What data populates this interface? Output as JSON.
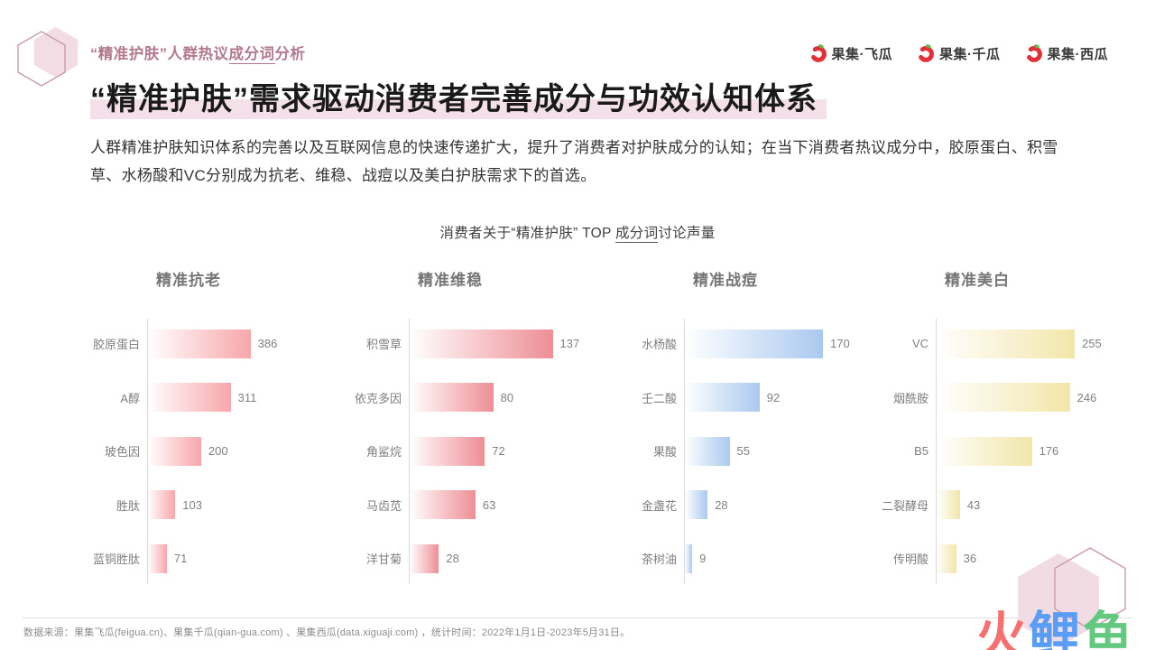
{
  "header": {
    "kicker": {
      "pre": "“精准护肤”人群热议",
      "underlined": "成分词",
      "post": "分析"
    },
    "brands": [
      {
        "name": "果集·飞瓜"
      },
      {
        "name": "果集·千瓜"
      },
      {
        "name": "果集·西瓜"
      }
    ]
  },
  "title": "“精准护肤”需求驱动消费者完善成分与功效认知体系",
  "intro": "人群精准护肤知识体系的完善以及互联网信息的快速传递扩大，提升了消费者对护肤成分的认知；在当下消费者热议成分中，胶原蛋白、积雪草、水杨酸和VC分别成为抗老、维稳、战痘以及美白护肤需求下的首选。",
  "chart_section": {
    "title_pre": "消费者关于“精准护肤” TOP ",
    "title_underlined": "成分词",
    "title_post": "讨论声量"
  },
  "chart_data": [
    {
      "type": "bar",
      "orientation": "horizontal",
      "title": "精准抗老",
      "categories": [
        "胶原蛋白",
        "A醇",
        "玻色因",
        "胜肽",
        "蓝铜胜肽"
      ],
      "values": [
        386,
        311,
        200,
        103,
        71
      ],
      "xlim": [
        0,
        550
      ],
      "bar_color": "#f7a6ab",
      "grid": false,
      "legend": false
    },
    {
      "type": "bar",
      "orientation": "horizontal",
      "title": "精准维稳",
      "categories": [
        "积雪草",
        "依克多因",
        "角鲨烷",
        "马齿苋",
        "洋甘菊"
      ],
      "values": [
        137,
        80,
        72,
        63,
        28
      ],
      "xlim": [
        0,
        140
      ],
      "bar_color": "#ee8e96",
      "grid": false,
      "legend": false
    },
    {
      "type": "bar",
      "orientation": "horizontal",
      "title": "精准战痘",
      "categories": [
        "水杨酸",
        "壬二酸",
        "果酸",
        "金盏花",
        "茶树油"
      ],
      "values": [
        170,
        92,
        55,
        28,
        9
      ],
      "xlim": [
        0,
        180
      ],
      "bar_color": "#aac9ef",
      "grid": false,
      "legend": false
    },
    {
      "type": "bar",
      "orientation": "horizontal",
      "title": "精准美白",
      "categories": [
        "VC",
        "烟酰胺",
        "B5",
        "二裂酵母",
        "传明酸"
      ],
      "values": [
        255,
        246,
        176,
        43,
        36
      ],
      "xlim": [
        0,
        270
      ],
      "bar_color": "#f2e6a9",
      "grid": false,
      "legend": false
    }
  ],
  "footer": {
    "source": "数据来源：果集飞瓜(feigua.cn)、果集千瓜(qian-gua.com) 、果集西瓜(data.xiguaji.com) ，统计时间：2022年1月1日-2023年5月31日。"
  },
  "watermark": {
    "chars": [
      {
        "text": "火",
        "color": "#f4716f"
      },
      {
        "text": "鲤",
        "color": "#5a9df6"
      },
      {
        "text": "鱼",
        "color": "#63c97f"
      }
    ]
  },
  "colors": {
    "accent_rose": "#b2798c",
    "title_highlight": "#f4e0e8",
    "axis_line": "#d9d9d9",
    "brand_red": "#e23038",
    "brand_green": "#62b74e"
  }
}
